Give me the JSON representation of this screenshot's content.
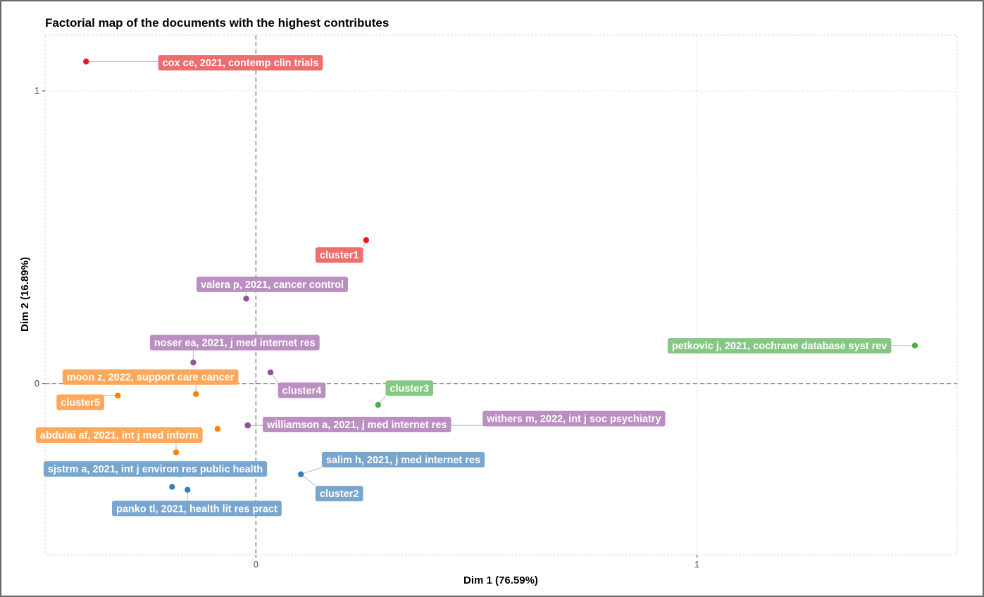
{
  "chart_data": {
    "type": "scatter",
    "title": "Factorial map of the documents with the highest contributes",
    "xlabel": "Dim 1 (76.59%)",
    "ylabel": "Dim 2 (16.89%)",
    "xlim": [
      -0.478,
      1.59
    ],
    "ylim": [
      -0.585,
      1.19
    ],
    "xticks": [
      {
        "value": 0,
        "label": "0"
      },
      {
        "value": 1,
        "label": "1"
      }
    ],
    "yticks": [
      {
        "value": 0,
        "label": "0"
      },
      {
        "value": 1,
        "label": "1"
      }
    ],
    "reference_lines": {
      "x": 0,
      "y": 0,
      "style": "dashed"
    },
    "grid": true,
    "colors": {
      "cluster1": "#e41a1c",
      "cluster2": "#377eb8",
      "cluster3": "#4daf4a",
      "cluster4": "#984ea3",
      "cluster5": "#ff7f00"
    },
    "label_colors": {
      "cluster1": "#ee6d6e",
      "cluster2": "#79a6cf",
      "cluster3": "#85c883",
      "cluster4": "#bb8fc2",
      "cluster5": "#ffa85b"
    },
    "points": [
      {
        "label": "cox ce, 2021, contemp clin trials",
        "cluster": "cluster1",
        "x": -0.385,
        "y": 1.1
      },
      {
        "label": "cluster1",
        "cluster": "cluster1",
        "x": 0.25,
        "y": 0.49
      },
      {
        "label": "valera p, 2021, cancer control",
        "cluster": "cluster4",
        "x": -0.022,
        "y": 0.29
      },
      {
        "label": "noser ea, 2021, j med internet res",
        "cluster": "cluster4",
        "x": -0.142,
        "y": 0.072
      },
      {
        "label": "cluster4",
        "cluster": "cluster4",
        "x": 0.033,
        "y": 0.038
      },
      {
        "label": "williamson a, 2021, j med internet res",
        "cluster": "cluster4",
        "x": -0.018,
        "y": -0.143
      },
      {
        "label": "withers m, 2022, int j soc psychiatry",
        "cluster": "cluster4",
        "x": -0.019,
        "y": -0.143
      },
      {
        "label": "petkovic j, 2021, cochrane database syst rev",
        "cluster": "cluster3",
        "x": 1.494,
        "y": 0.13
      },
      {
        "label": "cluster3",
        "cluster": "cluster3",
        "x": 0.277,
        "y": -0.073
      },
      {
        "label": "moon z, 2022, support care cancer",
        "cluster": "cluster5",
        "x": -0.136,
        "y": -0.036
      },
      {
        "label": "cluster5",
        "cluster": "cluster5",
        "x": -0.313,
        "y": -0.041
      },
      {
        "label": "abdulai af, 2021, int j med inform",
        "cluster": "cluster5",
        "x": -0.181,
        "y": -0.235
      },
      {
        "label": "abdulai af, 2021, int j med inform",
        "cluster": "cluster5",
        "x": -0.087,
        "y": -0.155,
        "unlabeled": true
      },
      {
        "label": "salim h, 2021, j med internet res",
        "cluster": "cluster2",
        "x": 0.102,
        "y": -0.31
      },
      {
        "label": "cluster2",
        "cluster": "cluster2",
        "x": 0.102,
        "y": -0.31,
        "shared_point": true
      },
      {
        "label": "sjstrm a, 2021, int j environ res public health",
        "cluster": "cluster2",
        "x": -0.172,
        "y": -0.31
      },
      {
        "label": "sjstrm a, 2021, int j environ res public health",
        "cluster": "cluster2",
        "x": -0.19,
        "y": -0.353,
        "unlabeled": true
      },
      {
        "label": "panko tl, 2021, health lit res pract",
        "cluster": "cluster2",
        "x": -0.155,
        "y": -0.363
      }
    ],
    "labels": [
      {
        "text": "cox ce, 2021, contemp clin trials",
        "cluster": "cluster1",
        "x": -0.035,
        "y": 1.096,
        "anchor_point": 0
      },
      {
        "text": "cluster1",
        "cluster": "cluster1",
        "x": 0.189,
        "y": 0.439,
        "anchor_point": 1
      },
      {
        "text": "valera p, 2021, cancer control",
        "cluster": "cluster4",
        "x": 0.037,
        "y": 0.339,
        "anchor_point": 2
      },
      {
        "text": "noser ea, 2021, j med internet res",
        "cluster": "cluster4",
        "x": -0.048,
        "y": 0.14,
        "anchor_point": 3
      },
      {
        "text": "cluster4",
        "cluster": "cluster4",
        "x": 0.104,
        "y": -0.023,
        "anchor_point": 4
      },
      {
        "text": "williamson a, 2021, j med internet res",
        "cluster": "cluster4",
        "x": 0.229,
        "y": -0.14,
        "anchor_point": 5
      },
      {
        "text": "withers m, 2022, int j soc psychiatry",
        "cluster": "cluster4",
        "x": 0.721,
        "y": -0.12,
        "anchor_point": 6
      },
      {
        "text": "petkovic j, 2021, cochrane database syst rev",
        "cluster": "cluster3",
        "x": 1.187,
        "y": 0.129,
        "anchor_point": 7
      },
      {
        "text": "cluster3",
        "cluster": "cluster3",
        "x": 0.348,
        "y": -0.016,
        "anchor_point": 8
      },
      {
        "text": "moon z, 2022, support care cancer",
        "cluster": "cluster5",
        "x": -0.239,
        "y": 0.022,
        "anchor_point": 9
      },
      {
        "text": "cluster5",
        "cluster": "cluster5",
        "x": -0.398,
        "y": -0.064,
        "anchor_point": 10
      },
      {
        "text": "abdulai af, 2021, int j med inform",
        "cluster": "cluster5",
        "x": -0.31,
        "y": -0.176,
        "anchor_point": 11
      },
      {
        "text": "salim h, 2021, j med internet res",
        "cluster": "cluster2",
        "x": 0.334,
        "y": -0.26,
        "anchor_point": 13
      },
      {
        "text": "cluster2",
        "cluster": "cluster2",
        "x": 0.189,
        "y": -0.376,
        "anchor_point": 14
      },
      {
        "text": "sjstrm a, 2021, int j environ res public health",
        "cluster": "cluster2",
        "x": -0.228,
        "y": -0.292,
        "anchor_point": 15
      },
      {
        "text": "panko tl, 2021, health lit res pract",
        "cluster": "cluster2",
        "x": -0.134,
        "y": -0.427,
        "anchor_point": 17
      }
    ]
  }
}
